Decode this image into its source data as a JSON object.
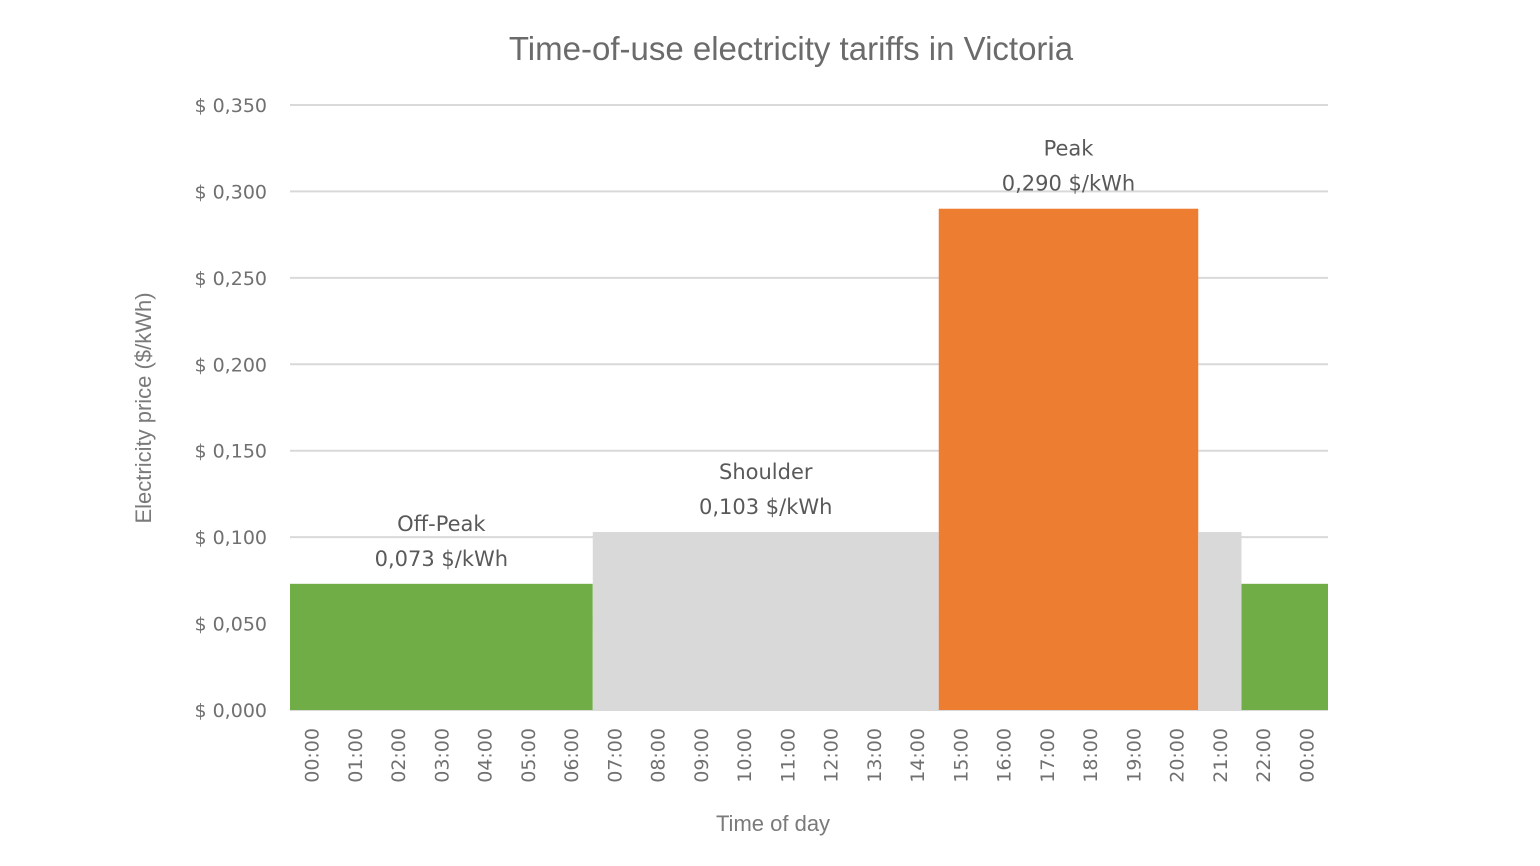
{
  "chart_data": {
    "type": "bar",
    "title": "Time-of-use electricity tariffs in Victoria",
    "xlabel": "Time of day",
    "ylabel": "Electricity price ($/kWh)",
    "ylim": [
      0,
      0.35
    ],
    "yticks": [
      0,
      0.05,
      0.1,
      0.15,
      0.2,
      0.25,
      0.3,
      0.35
    ],
    "ytick_labels": [
      "$ 0,000",
      "$ 0,050",
      "$ 0,100",
      "$ 0,150",
      "$ 0,200",
      "$ 0,250",
      "$ 0,300",
      "$ 0,350"
    ],
    "categories": [
      "00:00",
      "01:00",
      "02:00",
      "03:00",
      "04:00",
      "05:00",
      "06:00",
      "07:00",
      "08:00",
      "09:00",
      "10:00",
      "11:00",
      "12:00",
      "13:00",
      "14:00",
      "15:00",
      "16:00",
      "17:00",
      "18:00",
      "19:00",
      "20:00",
      "21:00",
      "22:00",
      "00:00"
    ],
    "grid": true,
    "segments": [
      {
        "tariff": "Off-Peak",
        "start_hour": 0,
        "end_hour": 7,
        "value": 0.073
      },
      {
        "tariff": "Shoulder",
        "start_hour": 7,
        "end_hour": 15,
        "value": 0.103
      },
      {
        "tariff": "Peak",
        "start_hour": 15,
        "end_hour": 21,
        "value": 0.29
      },
      {
        "tariff": "Shoulder",
        "start_hour": 21,
        "end_hour": 22,
        "value": 0.103
      },
      {
        "tariff": "Off-Peak",
        "start_hour": 22,
        "end_hour": 24,
        "value": 0.073
      }
    ],
    "colors": {
      "Off-Peak": "#70AD47",
      "Shoulder": "#D9D9D9",
      "Peak": "#ED7D31"
    },
    "annotations": [
      {
        "tariff": "Off-Peak",
        "name": "Off-Peak",
        "value_label": "0,073 $/kWh",
        "start_hour": 0,
        "end_hour": 7,
        "value": 0.073
      },
      {
        "tariff": "Shoulder",
        "name": "Shoulder",
        "value_label": "0,103 $/kWh",
        "start_hour": 7,
        "end_hour": 15,
        "value": 0.103
      },
      {
        "tariff": "Peak",
        "name": "Peak",
        "value_label": "0,290 $/kWh",
        "start_hour": 15,
        "end_hour": 21,
        "value": 0.29
      }
    ]
  }
}
